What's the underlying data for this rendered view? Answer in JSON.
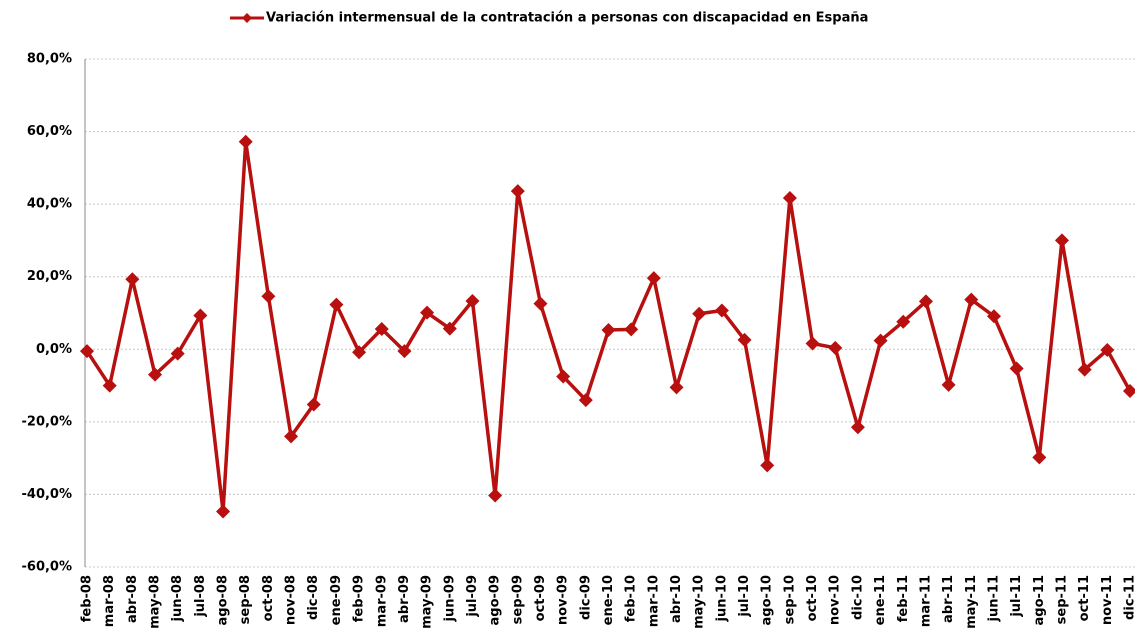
{
  "chart_data": {
    "type": "line",
    "categories": [
      "feb-08",
      "mar-08",
      "abr-08",
      "may-08",
      "jun-08",
      "jul-08",
      "ago-08",
      "sep-08",
      "oct-08",
      "nov-08",
      "dic-08",
      "ene-09",
      "feb-09",
      "mar-09",
      "abr-09",
      "may-09",
      "jun-09",
      "jul-09",
      "ago-09",
      "sep-09",
      "oct-09",
      "nov-09",
      "dic-09",
      "ene-10",
      "feb-10",
      "mar-10",
      "abr-10",
      "may-10",
      "jun-10",
      "jul-10",
      "ago-10",
      "sep-10",
      "oct-10",
      "nov-10",
      "dic-10",
      "ene-11",
      "feb-11",
      "mar-11",
      "abr-11",
      "may-11",
      "jun-11",
      "jul-11",
      "ago-11",
      "sep-11",
      "oct-11",
      "nov-11",
      "dic-11"
    ],
    "series": [
      {
        "name": "Variación intermensual de la contratación a personas con discapacidad en España",
        "color": "#b80f0f",
        "values": [
          -0.5,
          -10,
          19.3,
          -7,
          -1.2,
          9.3,
          -44.7,
          57.2,
          14.6,
          -24,
          -15.2,
          12.3,
          -0.8,
          5.6,
          -0.5,
          10.1,
          5.7,
          13.3,
          -40.3,
          43.6,
          12.6,
          -7.5,
          -14,
          5.3,
          5.5,
          19.6,
          -10.5,
          9.8,
          10.7,
          2.6,
          -32,
          41.7,
          1.6,
          0.4,
          -21.5,
          2.4,
          7.6,
          13.2,
          -9.8,
          13.7,
          9.1,
          -5.3,
          -29.8,
          30,
          -5.6,
          -0.2,
          -11.5
        ]
      }
    ],
    "ylim": [
      -60,
      80
    ],
    "yticks": [
      {
        "value": -60,
        "label": "-60,0%"
      },
      {
        "value": -40,
        "label": "-40,0%"
      },
      {
        "value": -20,
        "label": "-20,0%"
      },
      {
        "value": 0,
        "label": "0,0%"
      },
      {
        "value": 20,
        "label": "20,0%"
      },
      {
        "value": 40,
        "label": "40,0%"
      },
      {
        "value": 60,
        "label": "60,0%"
      },
      {
        "value": 80,
        "label": "80,0%"
      }
    ],
    "grid": true,
    "legend": "top"
  }
}
